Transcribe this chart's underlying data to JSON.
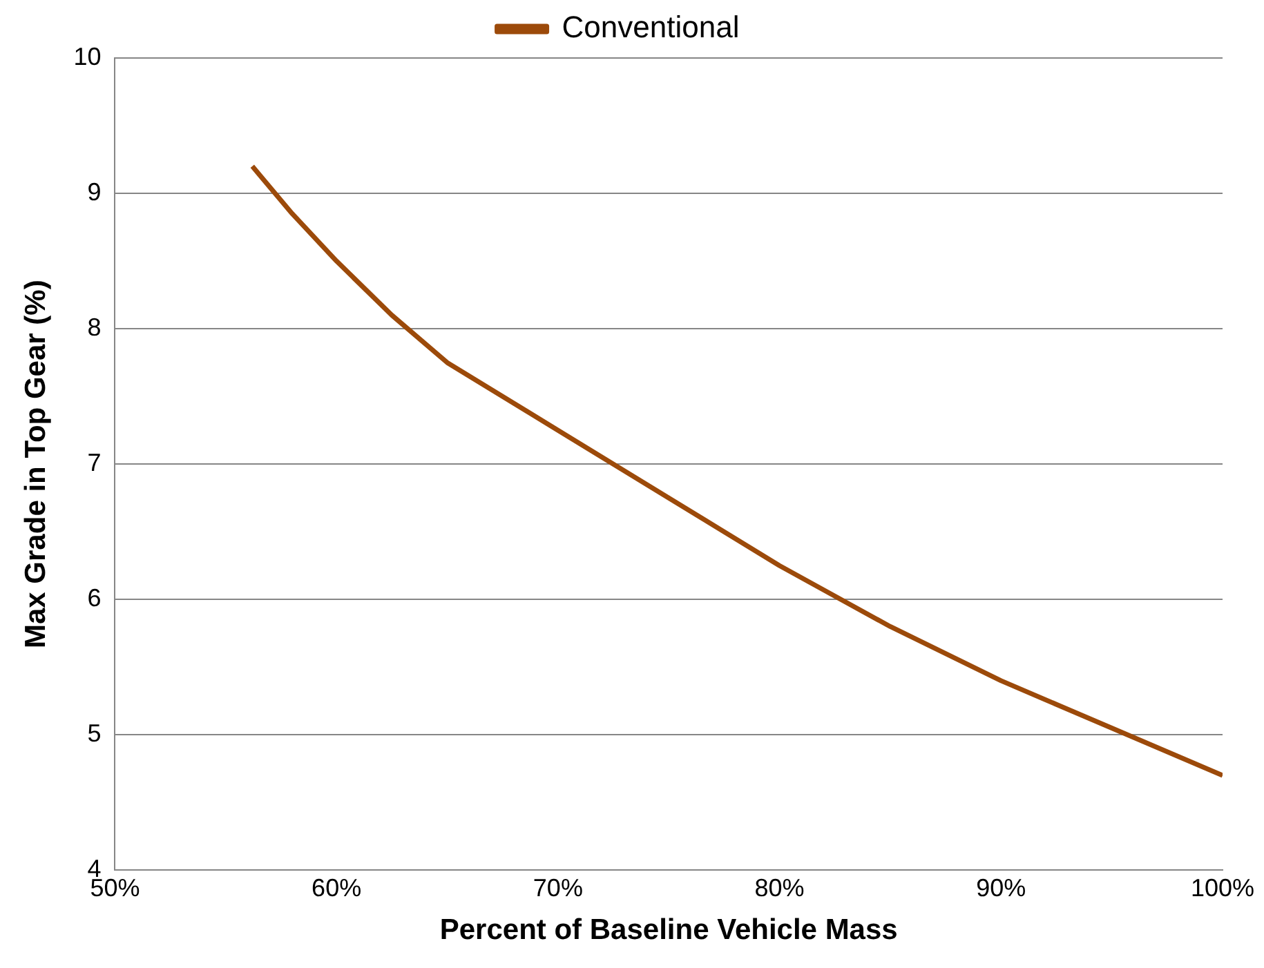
{
  "chart_data": {
    "type": "line",
    "xlabel": "Percent of Baseline Vehicle Mass",
    "ylabel": "Max Grade in Top Gear (%)",
    "series": [
      {
        "name": "Conventional",
        "color": "#9c4a0a",
        "x": [
          56.2,
          58,
          60,
          62.5,
          65,
          70,
          75,
          80,
          85,
          90,
          95,
          100
        ],
        "values": [
          9.2,
          8.85,
          8.5,
          8.1,
          7.75,
          7.25,
          6.75,
          6.25,
          5.8,
          5.4,
          5.05,
          4.7
        ]
      }
    ],
    "xlim": [
      50,
      100
    ],
    "xticks": [
      {
        "value": 50,
        "label": "50%"
      },
      {
        "value": 60,
        "label": "60%"
      },
      {
        "value": 70,
        "label": "70%"
      },
      {
        "value": 80,
        "label": "80%"
      },
      {
        "value": 90,
        "label": "90%"
      },
      {
        "value": 100,
        "label": "100%"
      }
    ],
    "ylim": [
      4,
      10
    ],
    "yticks": [
      4,
      5,
      6,
      7,
      8,
      9,
      10
    ],
    "grid": "y",
    "legend": "top",
    "marker": "none",
    "line_style": "solid"
  }
}
